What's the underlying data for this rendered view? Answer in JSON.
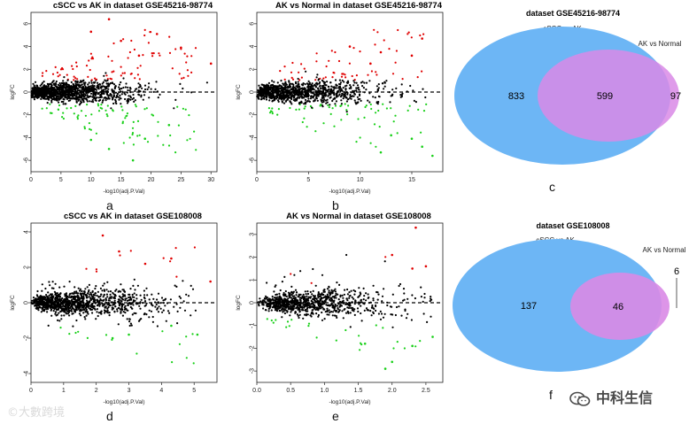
{
  "figure": {
    "letters": [
      "a",
      "b",
      "c",
      "d",
      "e",
      "f"
    ]
  },
  "colors": {
    "up": "#e00000",
    "down": "#19d019",
    "ns": "#000000",
    "venn_blue": "#6db6f5",
    "venn_pink": "#d98ae6",
    "venn_overlap": "#b28be8"
  },
  "volcano": [
    {
      "id": "a",
      "title": "cSCC vs AK in dataset GSE45216-98774",
      "xlabel": "-log10(adj.P.Val)",
      "ylabel": "logFC",
      "xticks": [
        0,
        5,
        10,
        15,
        20,
        25,
        30
      ],
      "yticks": [
        -6,
        -4,
        -2,
        0,
        2,
        4,
        6
      ],
      "xlim": [
        0,
        31
      ],
      "ylim": [
        -7,
        7
      ]
    },
    {
      "id": "b",
      "title": "AK vs Normal in dataset GSE45216-98774",
      "xlabel": "-log10(adj.P.Val)",
      "ylabel": "logFC",
      "xticks": [
        0,
        5,
        10,
        15
      ],
      "yticks": [
        -6,
        -4,
        -2,
        0,
        2,
        4,
        6
      ],
      "xlim": [
        0,
        18
      ],
      "ylim": [
        -7,
        7
      ]
    },
    {
      "id": "d",
      "title": "cSCC vs AK in dataset GSE108008",
      "xlabel": "-log10(adj.P.Val)",
      "ylabel": "logFC",
      "xticks": [
        0,
        1,
        2,
        3,
        4,
        5
      ],
      "yticks": [
        -4,
        -2,
        0,
        2,
        4
      ],
      "xlim": [
        0,
        5.7
      ],
      "ylim": [
        -4.5,
        4.5
      ]
    },
    {
      "id": "e",
      "title": "AK vs Normal in dataset GSE108008",
      "xlabel": "-log10(adj.P.Val)",
      "ylabel": "logFC",
      "xticks": [
        "0.0",
        "0.5",
        "1.0",
        "1.5",
        "2.0",
        "2.5"
      ],
      "yticks": [
        -3,
        -2,
        -1,
        0,
        1,
        2,
        3
      ],
      "xlim": [
        0,
        2.75
      ],
      "ylim": [
        -3.5,
        3.5
      ]
    }
  ],
  "venn": [
    {
      "id": "c",
      "title": "dataset GSE45216-98774",
      "setA": "cSCC vs AK",
      "setB": "AK vs Normal",
      "onlyA": "833",
      "both": "599",
      "onlyB": "97"
    },
    {
      "id": "f",
      "title": "dataset GSE108008",
      "setA": "cSCC vs AK",
      "setB": "AK vs Normal",
      "onlyA": "137",
      "both": "46",
      "onlyB": "6"
    }
  ],
  "watermarks": {
    "left": "©大數跨境",
    "right": "中科生信"
  },
  "chart_data": [
    {
      "type": "scatter",
      "title": "cSCC vs AK in dataset GSE45216-98774",
      "xlabel": "-log10(adj.P.Val)",
      "ylabel": "logFC",
      "xlim": [
        0,
        31
      ],
      "ylim": [
        -7,
        7
      ],
      "representative_points": {
        "up": [
          [
            13,
            6.4
          ],
          [
            21,
            5.1
          ],
          [
            30,
            2.5
          ],
          [
            25,
            3.9
          ],
          [
            10,
            5.3
          ],
          [
            15,
            4.5
          ],
          [
            18,
            3.2
          ]
        ],
        "down": [
          [
            17,
            -6.0
          ],
          [
            13,
            -5.0
          ],
          [
            19,
            -4.1
          ],
          [
            23,
            -2.9
          ],
          [
            10,
            -4.2
          ]
        ]
      },
      "threshold_line": 0
    },
    {
      "type": "scatter",
      "title": "AK vs Normal in dataset GSE45216-98774",
      "xlabel": "-log10(adj.P.Val)",
      "ylabel": "logFC",
      "xlim": [
        0,
        18
      ],
      "ylim": [
        -7,
        7
      ],
      "representative_points": {
        "up": [
          [
            16,
            4.7
          ],
          [
            12,
            3.5
          ],
          [
            9,
            4.0
          ],
          [
            15,
            3.2
          ],
          [
            11,
            2.5
          ]
        ],
        "down": [
          [
            17,
            -5.6
          ],
          [
            16,
            -4.8
          ],
          [
            12,
            -5.3
          ],
          [
            13,
            -3.8
          ],
          [
            15,
            -4.1
          ]
        ]
      },
      "threshold_line": 0
    },
    {
      "type": "scatter",
      "title": "cSCC vs AK in dataset GSE108008",
      "xlabel": "-log10(adj.P.Val)",
      "ylabel": "logFC",
      "xlim": [
        0,
        5.7
      ],
      "ylim": [
        -4.5,
        4.5
      ],
      "representative_points": {
        "up": [
          [
            2.2,
            3.8
          ],
          [
            2.7,
            2.9
          ],
          [
            4.3,
            2.5
          ],
          [
            3.5,
            2.2
          ],
          [
            5.5,
            1.2
          ]
        ],
        "down": [
          [
            5.1,
            -1.8
          ],
          [
            3.0,
            -1.8
          ],
          [
            4.3,
            -1.3
          ],
          [
            2.5,
            -2.0
          ]
        ]
      },
      "threshold_line": 0
    },
    {
      "type": "scatter",
      "title": "AK vs Normal in dataset GSE108008",
      "xlabel": "-log10(adj.P.Val)",
      "ylabel": "logFC",
      "xlim": [
        0,
        2.75
      ],
      "ylim": [
        -3.5,
        3.5
      ],
      "representative_points": {
        "up": [
          [
            2.35,
            3.3
          ],
          [
            2.0,
            2.1
          ],
          [
            2.3,
            1.5
          ],
          [
            2.5,
            1.6
          ]
        ],
        "down": [
          [
            1.9,
            -2.9
          ],
          [
            2.0,
            -2.6
          ],
          [
            2.6,
            -1.5
          ],
          [
            2.3,
            -1.9
          ],
          [
            1.6,
            -1.8
          ]
        ]
      },
      "threshold_line": 0
    }
  ]
}
